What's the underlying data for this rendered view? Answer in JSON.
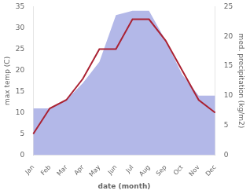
{
  "chart_data": {
    "type": "line",
    "xlabel": "date (month)",
    "ylabel": "max temp (C)",
    "y2label": "med. precipitation (kg/m2)",
    "categories": [
      "Jan",
      "Feb",
      "Mar",
      "Apr",
      "May",
      "Jun",
      "Jul",
      "Aug",
      "Sep",
      "Oct",
      "Nov",
      "Dec"
    ],
    "series": [
      {
        "type": "area",
        "axis": "y2",
        "color": "#b3b8e8",
        "values": [
          7.857142857142857,
          7.857142857142857,
          9.285714285714286,
          12.142857142857142,
          15.714285714285714,
          23.571428571428573,
          24.285714285714285,
          24.285714285714285,
          19.285714285714285,
          13.571428571428571,
          10.0,
          10.0
        ]
      },
      {
        "type": "line",
        "color": "#aa2233",
        "values": [
          5,
          11,
          13,
          18,
          25,
          25,
          32,
          32,
          27,
          20,
          13,
          10
        ]
      }
    ],
    "ylim": [
      0,
      35
    ],
    "yticks": [
      0,
      5,
      10,
      15,
      20,
      25,
      30,
      35
    ],
    "y2lim": [
      0,
      25
    ],
    "y2ticks": [
      0,
      5,
      10,
      15,
      20,
      25
    ],
    "grid": false
  }
}
